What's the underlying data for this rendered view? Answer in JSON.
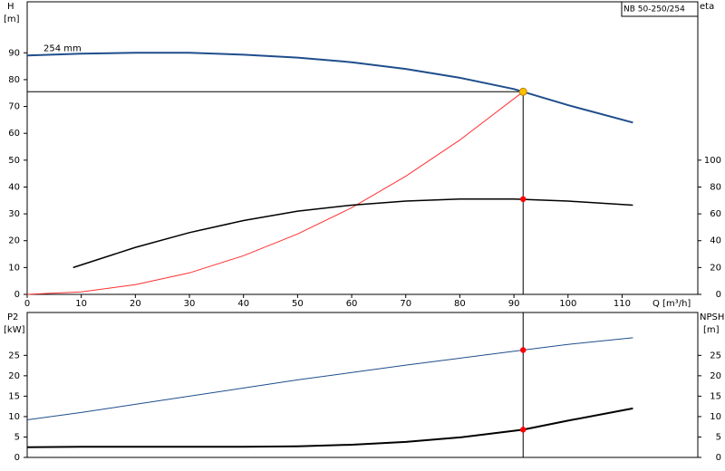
{
  "chart_data": [
    {
      "type": "line",
      "title": "NB 50-250/254",
      "xlabel": "Q [m³/h]",
      "ylabel": "H",
      "yunit": "[m]",
      "y2label": "eta",
      "xlim": [
        0,
        124
      ],
      "ylim": [
        0,
        109
      ],
      "y2lim": [
        0,
        218
      ],
      "xticks": [
        0,
        10,
        20,
        30,
        40,
        50,
        60,
        70,
        80,
        90,
        100,
        110
      ],
      "yticks": [
        0,
        10,
        20,
        30,
        40,
        50,
        60,
        70,
        80,
        90
      ],
      "y2ticks": [
        0,
        20,
        40,
        60,
        80,
        100
      ],
      "series": [
        {
          "name": "254 mm",
          "color": "#1f4e8c",
          "width": 2,
          "x": [
            0,
            10,
            20,
            30,
            40,
            50,
            60,
            70,
            80,
            90,
            91.7,
            100,
            112
          ],
          "values": [
            89,
            89.7,
            90,
            90,
            89.3,
            88.2,
            86.5,
            84,
            80.7,
            76.5,
            75.5,
            70.5,
            64
          ]
        },
        {
          "color": "#ff3030",
          "width": 1,
          "x": [
            0,
            10,
            20,
            30,
            40,
            50,
            60,
            70,
            80,
            91.7
          ],
          "values": [
            0,
            0.9,
            3.6,
            8,
            14.4,
            22.5,
            32.3,
            44,
            57.5,
            75.5
          ]
        },
        {
          "color": "#000000",
          "width": 1.5,
          "axis": "y2",
          "x": [
            8.5,
            20,
            30,
            40,
            50,
            60,
            70,
            80,
            90,
            100,
            112
          ],
          "values": [
            20,
            35,
            46,
            55,
            62,
            66.5,
            69.5,
            71,
            71,
            69.5,
            66.5
          ]
        }
      ],
      "operating_point": {
        "x": 91.7,
        "y": 75.5,
        "y2": 71
      }
    },
    {
      "type": "line",
      "ylabel": "P2",
      "yunit": "[kW]",
      "y2label": "NPSH",
      "y2unit": "[m]",
      "xlim": [
        0,
        124
      ],
      "ylim": [
        0,
        35.5
      ],
      "y2lim": [
        0,
        35.5
      ],
      "yticks": [
        0,
        5,
        10,
        15,
        20,
        25
      ],
      "y2ticks": [
        0,
        5,
        10,
        15,
        20,
        25
      ],
      "series": [
        {
          "color": "#1f4e8c",
          "width": 1,
          "x": [
            0,
            10,
            20,
            30,
            40,
            50,
            60,
            70,
            80,
            91.7,
            100,
            112
          ],
          "values": [
            9.2,
            11,
            13,
            15,
            17,
            19,
            20.8,
            22.6,
            24.3,
            26.3,
            27.7,
            29.3
          ]
        },
        {
          "color": "#000000",
          "width": 2,
          "axis": "y2",
          "x": [
            0,
            10,
            20,
            30,
            40,
            50,
            60,
            70,
            80,
            91.7,
            100,
            112
          ],
          "values": [
            2.5,
            2.6,
            2.6,
            2.6,
            2.6,
            2.7,
            3.1,
            3.8,
            4.9,
            6.8,
            9,
            12
          ]
        }
      ],
      "operating_point": {
        "x": 91.7,
        "y": 26.3,
        "y2": 6.8
      }
    }
  ]
}
